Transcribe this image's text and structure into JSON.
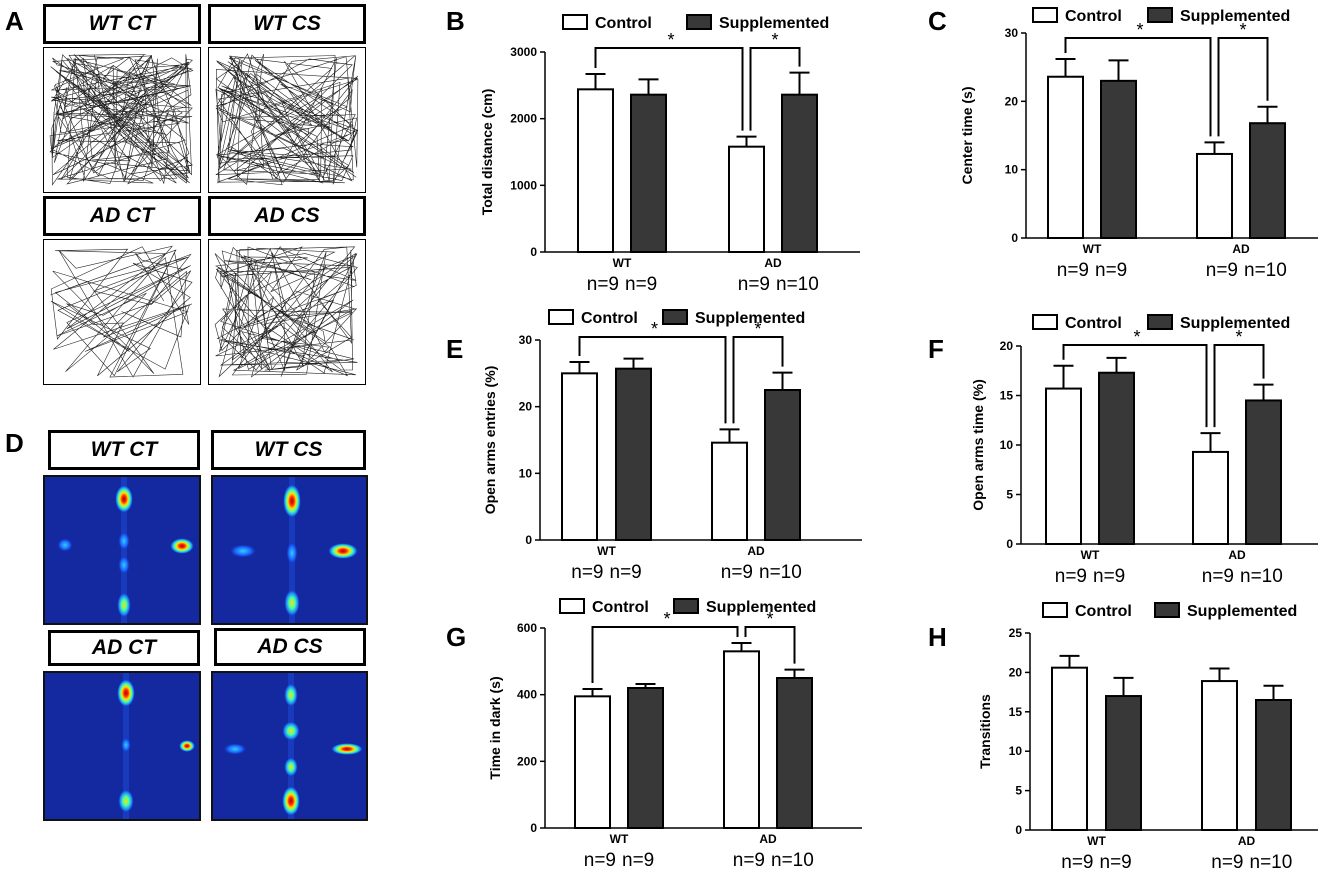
{
  "panel_letters": [
    "A",
    "B",
    "C",
    "D",
    "E",
    "F",
    "G",
    "H"
  ],
  "track_panels": [
    {
      "label": "WT CT"
    },
    {
      "label": "WT CS"
    },
    {
      "label": "AD CT"
    },
    {
      "label": "AD CS"
    }
  ],
  "heatmap_panels": [
    {
      "label": "WT CT"
    },
    {
      "label": "WT CS"
    },
    {
      "label": "AD CT"
    },
    {
      "label": "AD CS"
    }
  ],
  "colors": {
    "control": "#ffffff",
    "supplemented": "#383838",
    "heat_bg": "#1428a0"
  },
  "chart_data": [
    {
      "id": "B",
      "type": "bar",
      "categories": [
        "WT",
        "AD"
      ],
      "series": [
        {
          "name": "Control",
          "values": [
            2440,
            1580
          ],
          "errors": [
            230,
            150
          ]
        },
        {
          "name": "Supplemented",
          "values": [
            2360,
            2360
          ],
          "errors": [
            230,
            330
          ]
        }
      ],
      "ylabel": "Total distance (cm)",
      "ylim": [
        0,
        3000
      ],
      "yticks": [
        0,
        1000,
        2000,
        3000
      ],
      "n_labels": [
        [
          "n=9",
          "n=9"
        ],
        [
          "n=9",
          "n=10"
        ]
      ],
      "significance": [
        "*",
        "*"
      ]
    },
    {
      "id": "C",
      "type": "bar",
      "categories": [
        "WT",
        "AD"
      ],
      "series": [
        {
          "name": "Control",
          "values": [
            23.6,
            12.3
          ],
          "errors": [
            2.6,
            1.7
          ]
        },
        {
          "name": "Supplemented",
          "values": [
            23.0,
            16.8
          ],
          "errors": [
            3.0,
            2.4
          ]
        }
      ],
      "ylabel": "Center time (s)",
      "ylim": [
        0,
        30
      ],
      "yticks": [
        0,
        10,
        20,
        30
      ],
      "n_labels": [
        [
          "n=9",
          "n=9"
        ],
        [
          "n=9",
          "n=10"
        ]
      ],
      "significance": [
        "*",
        "*"
      ]
    },
    {
      "id": "E",
      "type": "bar",
      "categories": [
        "WT",
        "AD"
      ],
      "series": [
        {
          "name": "Control",
          "values": [
            25.0,
            14.6
          ],
          "errors": [
            1.7,
            2.0
          ]
        },
        {
          "name": "Supplemented",
          "values": [
            25.7,
            22.5
          ],
          "errors": [
            1.5,
            2.6
          ]
        }
      ],
      "ylabel": "Open arms entries (%)",
      "ylim": [
        0,
        30
      ],
      "yticks": [
        0,
        10,
        20,
        30
      ],
      "n_labels": [
        [
          "n=9",
          "n=9"
        ],
        [
          "n=9",
          "n=10"
        ]
      ],
      "significance": [
        "*",
        "*"
      ]
    },
    {
      "id": "F",
      "type": "bar",
      "categories": [
        "WT",
        "AD"
      ],
      "series": [
        {
          "name": "Control",
          "values": [
            15.7,
            9.3
          ],
          "errors": [
            2.3,
            1.9
          ]
        },
        {
          "name": "Supplemented",
          "values": [
            17.3,
            14.5
          ],
          "errors": [
            1.5,
            1.6
          ]
        }
      ],
      "ylabel": "Open arms time (%)",
      "ylim": [
        0,
        20
      ],
      "yticks": [
        0,
        5,
        10,
        15,
        20
      ],
      "n_labels": [
        [
          "n=9",
          "n=9"
        ],
        [
          "n=9",
          "n=10"
        ]
      ],
      "significance": [
        "*",
        "*"
      ]
    },
    {
      "id": "G",
      "type": "bar",
      "categories": [
        "WT",
        "AD"
      ],
      "series": [
        {
          "name": "Control",
          "values": [
            395,
            530
          ],
          "errors": [
            22,
            25
          ]
        },
        {
          "name": "Supplemented",
          "values": [
            420,
            450
          ],
          "errors": [
            12,
            25
          ]
        }
      ],
      "ylabel": "Time in dark (s)",
      "ylim": [
        0,
        600
      ],
      "yticks": [
        0,
        200,
        400,
        600
      ],
      "n_labels": [
        [
          "n=9",
          "n=9"
        ],
        [
          "n=9",
          "n=10"
        ]
      ],
      "significance": [
        "*",
        "*"
      ]
    },
    {
      "id": "H",
      "type": "bar",
      "categories": [
        "WT",
        "AD"
      ],
      "series": [
        {
          "name": "Control",
          "values": [
            20.6,
            18.9
          ],
          "errors": [
            1.5,
            1.6
          ]
        },
        {
          "name": "Supplemented",
          "values": [
            17.0,
            16.5
          ],
          "errors": [
            2.3,
            1.8
          ]
        }
      ],
      "ylabel": "Transitions",
      "ylim": [
        0,
        25
      ],
      "yticks": [
        0,
        5,
        10,
        15,
        20,
        25
      ],
      "n_labels": [
        [
          "n=9",
          "n=9"
        ],
        [
          "n=9",
          "n=10"
        ]
      ],
      "significance": []
    }
  ]
}
